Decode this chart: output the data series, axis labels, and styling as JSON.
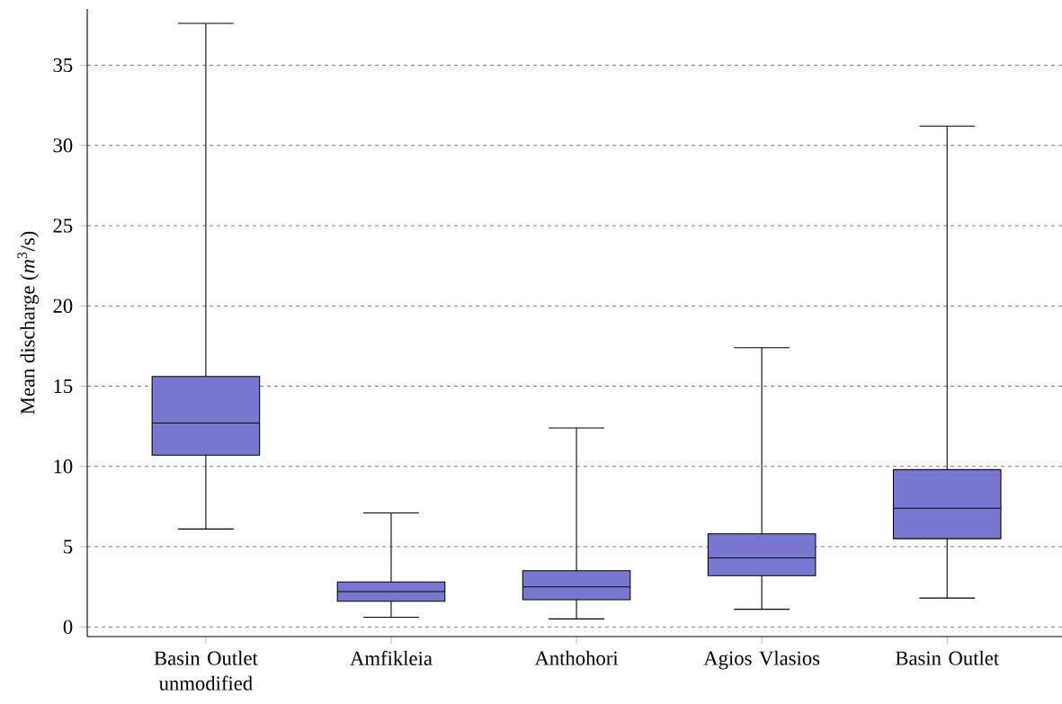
{
  "chart_data": {
    "type": "box",
    "ylabel": "Mean discharge (*m*$^{3}$/s)",
    "categories": [
      "Basin Outlet unmodified",
      "Amfikleia",
      "Anthohori",
      "Agios Vlasios",
      "Basin Outlet"
    ],
    "boxes": [
      {
        "low": 6.1,
        "q1": 10.7,
        "median": 12.7,
        "q3": 15.6,
        "high": 37.6
      },
      {
        "low": 0.6,
        "q1": 1.6,
        "median": 2.2,
        "q3": 2.8,
        "high": 7.1
      },
      {
        "low": 0.5,
        "q1": 1.7,
        "median": 2.5,
        "q3": 3.5,
        "high": 12.4
      },
      {
        "low": 1.1,
        "q1": 3.2,
        "median": 4.3,
        "q3": 5.8,
        "high": 17.4
      },
      {
        "low": 1.8,
        "q1": 5.5,
        "median": 7.4,
        "q3": 9.8,
        "high": 31.2
      }
    ],
    "color": "#7878d0",
    "ylim": [
      -0.6,
      38.5
    ],
    "yticks": [
      0,
      5,
      10,
      15,
      20,
      25,
      30,
      35
    ],
    "grid": "y"
  }
}
